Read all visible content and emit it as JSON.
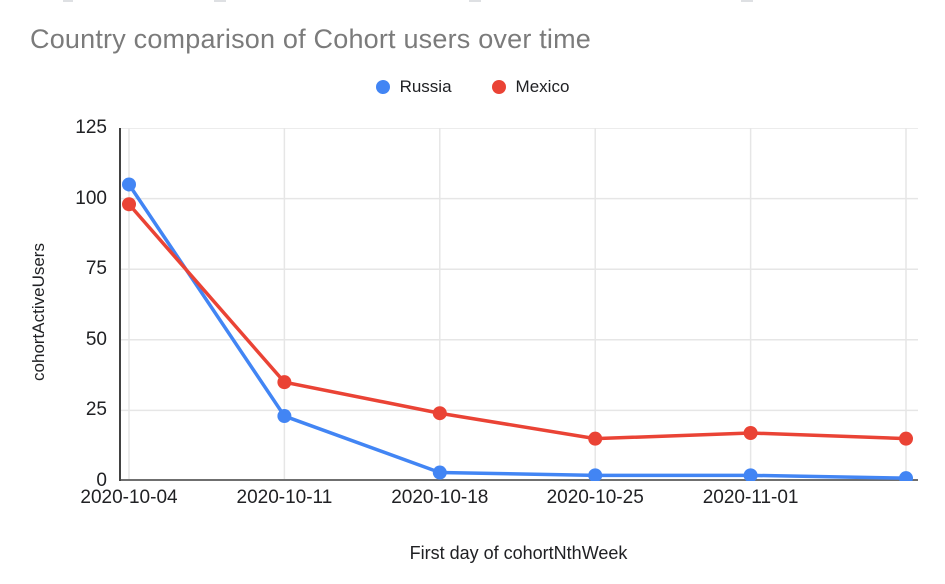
{
  "chart_data": {
    "type": "line",
    "title": "Country comparison of Cohort users over time",
    "xlabel": "First day of cohortNthWeek",
    "ylabel": "cohortActiveUsers",
    "categories": [
      "2020-10-04",
      "2020-10-11",
      "2020-10-18",
      "2020-10-25",
      "2020-11-01",
      ""
    ],
    "series": [
      {
        "name": "Russia",
        "color": "#4285F4",
        "values": [
          105,
          23,
          3,
          2,
          2,
          1
        ]
      },
      {
        "name": "Mexico",
        "color": "#EA4335",
        "values": [
          98,
          35,
          24,
          15,
          17,
          15
        ]
      }
    ],
    "ylim": [
      0,
      125
    ],
    "yticks": [
      0,
      25,
      50,
      75,
      100,
      125
    ],
    "grid": true,
    "legend_position": "top"
  },
  "legend": {
    "items": [
      {
        "label": "Russia",
        "color": "#4285F4"
      },
      {
        "label": "Mexico",
        "color": "#EA4335"
      }
    ]
  },
  "styles": {
    "background": "#ffffff",
    "title_color": "#7b7b7b",
    "tick_color": "#202124",
    "grid_color": "#e6e6e6",
    "y_axis_line_color": "#424242",
    "x_axis_line_color": "#6f6f6f"
  }
}
